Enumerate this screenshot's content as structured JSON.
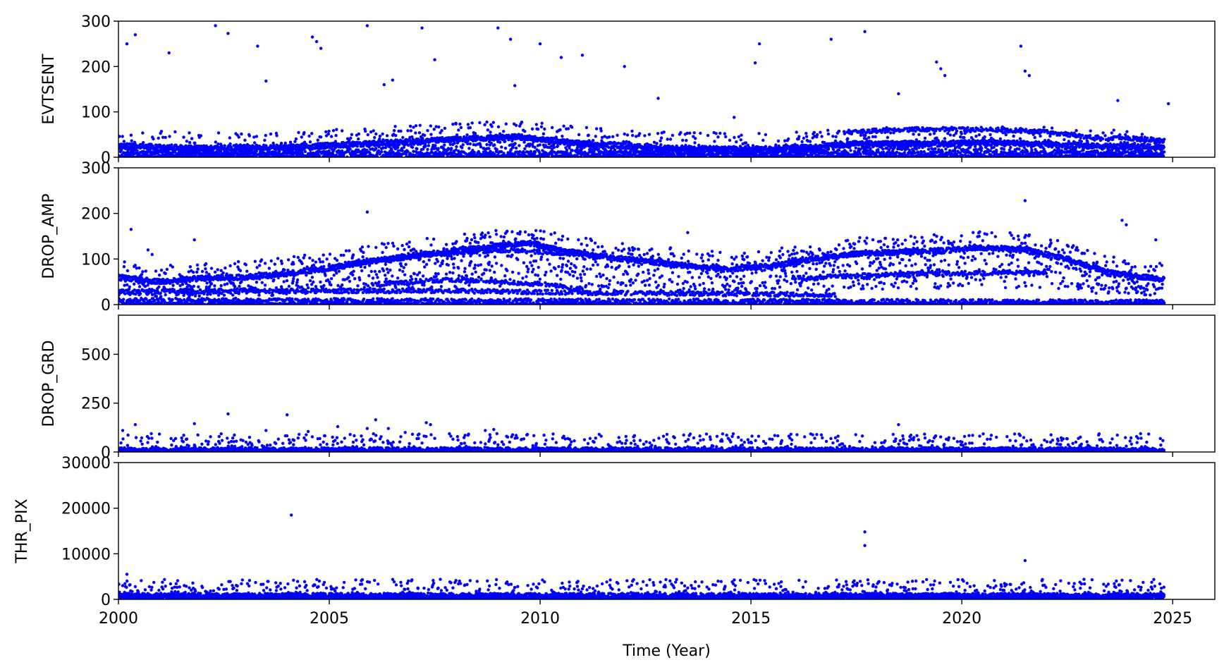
{
  "chart_data": {
    "type": "scatter",
    "point_color": "#0000ff",
    "grid": false,
    "x_axis": {
      "label": "Time (Year)",
      "range": [
        2000,
        2026
      ],
      "ticks": [
        2000,
        2005,
        2010,
        2015,
        2020,
        2025
      ]
    },
    "panels": [
      {
        "ylabel": "EVTSENT",
        "ylim": [
          0,
          300
        ],
        "yticks": [
          0,
          100,
          200,
          300
        ],
        "trend": [
          [
            2000.0,
            25
          ],
          [
            2002.0,
            20
          ],
          [
            2004.0,
            22
          ],
          [
            2006.0,
            30
          ],
          [
            2008.0,
            40
          ],
          [
            2009.5,
            45
          ],
          [
            2011.0,
            30
          ],
          [
            2013.0,
            20
          ],
          [
            2015.0,
            18
          ],
          [
            2016.5,
            22
          ],
          [
            2017.5,
            30
          ],
          [
            2019.0,
            30
          ],
          [
            2020.5,
            32
          ],
          [
            2022.0,
            30
          ],
          [
            2023.0,
            25
          ],
          [
            2024.8,
            22
          ]
        ],
        "bands": [
          {
            "x": [
              2017.2,
              2024.8
            ],
            "trend": [
              [
                2017.2,
                55
              ],
              [
                2019.0,
                62
              ],
              [
                2020.5,
                62
              ],
              [
                2022.0,
                56
              ],
              [
                2023.0,
                45
              ],
              [
                2024.8,
                38
              ]
            ]
          },
          {
            "x": [
              2000.0,
              2024.8
            ],
            "trend": [
              [
                2000.0,
                8
              ],
              [
                2024.8,
                8
              ]
            ]
          }
        ],
        "outliers": [
          [
            2000.2,
            250
          ],
          [
            2000.4,
            270
          ],
          [
            2002.3,
            290
          ],
          [
            2002.6,
            273
          ],
          [
            2004.6,
            265
          ],
          [
            2004.7,
            255
          ],
          [
            2004.8,
            240
          ],
          [
            2005.9,
            290
          ],
          [
            2007.2,
            285
          ],
          [
            2009.0,
            285
          ],
          [
            2009.3,
            260
          ],
          [
            2010.0,
            250
          ],
          [
            2010.5,
            220
          ],
          [
            2011.0,
            225
          ],
          [
            2012.0,
            200
          ],
          [
            2015.2,
            250
          ],
          [
            2015.1,
            208
          ],
          [
            2016.9,
            260
          ],
          [
            2017.7,
            277
          ],
          [
            2019.4,
            210
          ],
          [
            2019.5,
            195
          ],
          [
            2019.6,
            180
          ],
          [
            2021.4,
            245
          ],
          [
            2021.5,
            190
          ],
          [
            2021.6,
            180
          ],
          [
            2023.7,
            125
          ],
          [
            2024.9,
            118
          ],
          [
            2001.2,
            230
          ],
          [
            2003.3,
            245
          ],
          [
            2003.5,
            168
          ],
          [
            2006.3,
            160
          ],
          [
            2006.5,
            170
          ],
          [
            2007.5,
            215
          ],
          [
            2008.0,
            75
          ],
          [
            2009.4,
            158
          ],
          [
            2012.8,
            130
          ],
          [
            2014.6,
            88
          ],
          [
            2018.5,
            140
          ]
        ]
      },
      {
        "ylabel": "DROP_AMP",
        "ylim": [
          0,
          300
        ],
        "yticks": [
          0,
          100,
          200,
          300
        ],
        "trend": [
          [
            2000.0,
            60
          ],
          [
            2001.0,
            50
          ],
          [
            2002.0,
            58
          ],
          [
            2003.0,
            60
          ],
          [
            2004.0,
            68
          ],
          [
            2005.0,
            80
          ],
          [
            2006.0,
            95
          ],
          [
            2007.0,
            108
          ],
          [
            2008.0,
            118
          ],
          [
            2009.0,
            128
          ],
          [
            2009.8,
            135
          ],
          [
            2010.5,
            118
          ],
          [
            2011.5,
            105
          ],
          [
            2012.5,
            95
          ],
          [
            2013.5,
            85
          ],
          [
            2014.5,
            78
          ],
          [
            2015.5,
            85
          ],
          [
            2016.5,
            100
          ],
          [
            2017.5,
            112
          ],
          [
            2018.5,
            115
          ],
          [
            2019.5,
            118
          ],
          [
            2020.5,
            125
          ],
          [
            2021.5,
            120
          ],
          [
            2022.5,
            100
          ],
          [
            2023.5,
            70
          ],
          [
            2024.8,
            55
          ]
        ],
        "bands": [
          {
            "x": [
              2005.0,
              2011.0
            ],
            "trend": [
              [
                2005.0,
                85
              ],
              [
                2007.0,
                105
              ],
              [
                2009.0,
                120
              ],
              [
                2011.0,
                110
              ]
            ]
          },
          {
            "x": [
              2006.0,
              2011.0
            ],
            "trend": [
              [
                2006.0,
                45
              ],
              [
                2008.0,
                55
              ],
              [
                2010.0,
                45
              ],
              [
                2011.0,
                35
              ]
            ]
          },
          {
            "x": [
              2000.0,
              2017.0
            ],
            "trend": [
              [
                2000.0,
                28
              ],
              [
                2004.0,
                30
              ],
              [
                2008.0,
                30
              ],
              [
                2012.0,
                25
              ],
              [
                2017.0,
                22
              ]
            ]
          },
          {
            "x": [
              2000.0,
              2024.8
            ],
            "trend": [
              [
                2000.0,
                10
              ],
              [
                2012.0,
                8
              ],
              [
                2024.8,
                6
              ]
            ]
          },
          {
            "x": [
              2016.0,
              2022.0
            ],
            "trend": [
              [
                2016.0,
                58
              ],
              [
                2019.0,
                68
              ],
              [
                2022.0,
                70
              ]
            ]
          }
        ],
        "outliers": [
          [
            2000.3,
            165
          ],
          [
            2001.8,
            142
          ],
          [
            2005.9,
            203
          ],
          [
            2013.5,
            158
          ],
          [
            2021.5,
            228
          ],
          [
            2023.8,
            185
          ],
          [
            2023.9,
            175
          ],
          [
            2024.6,
            142
          ],
          [
            2000.7,
            120
          ],
          [
            2000.8,
            110
          ]
        ]
      },
      {
        "ylabel": "DROP_GRD",
        "ylim": [
          0,
          700
        ],
        "yticks": [
          0,
          250,
          500
        ],
        "trend": [
          [
            2000.0,
            10
          ],
          [
            2024.8,
            10
          ]
        ],
        "bands": [],
        "outliers": [
          [
            2000.1,
            110
          ],
          [
            2000.4,
            140
          ],
          [
            2001.8,
            145
          ],
          [
            2002.6,
            195
          ],
          [
            2003.5,
            110
          ],
          [
            2004.0,
            190
          ],
          [
            2004.5,
            105
          ],
          [
            2005.2,
            130
          ],
          [
            2005.9,
            120
          ],
          [
            2006.1,
            165
          ],
          [
            2006.4,
            120
          ],
          [
            2006.8,
            100
          ],
          [
            2007.3,
            150
          ],
          [
            2007.4,
            140
          ],
          [
            2008.7,
            110
          ],
          [
            2008.9,
            115
          ],
          [
            2009.7,
            90
          ],
          [
            2010.7,
            65
          ],
          [
            2013.8,
            60
          ],
          [
            2015.0,
            50
          ],
          [
            2018.5,
            140
          ],
          [
            2019.2,
            50
          ],
          [
            2021.4,
            35
          ],
          [
            2023.9,
            30
          ]
        ]
      },
      {
        "ylabel": "THR_PIX",
        "ylim": [
          0,
          30000
        ],
        "yticks": [
          0,
          10000,
          20000,
          30000
        ],
        "trend": [
          [
            2000.0,
            800
          ],
          [
            2024.8,
            800
          ]
        ],
        "bands": [],
        "outliers": [
          [
            2000.1,
            3000
          ],
          [
            2000.2,
            5500
          ],
          [
            2000.4,
            2800
          ],
          [
            2004.1,
            18500
          ],
          [
            2005.6,
            2400
          ],
          [
            2009.4,
            2600
          ],
          [
            2017.7,
            14800
          ],
          [
            2017.7,
            11800
          ],
          [
            2017.9,
            3200
          ],
          [
            2019.3,
            2300
          ],
          [
            2021.5,
            8500
          ],
          [
            2023.8,
            4200
          ],
          [
            2002.5,
            2200
          ],
          [
            2007.1,
            2500
          ],
          [
            2011.0,
            2300
          ]
        ]
      }
    ]
  }
}
